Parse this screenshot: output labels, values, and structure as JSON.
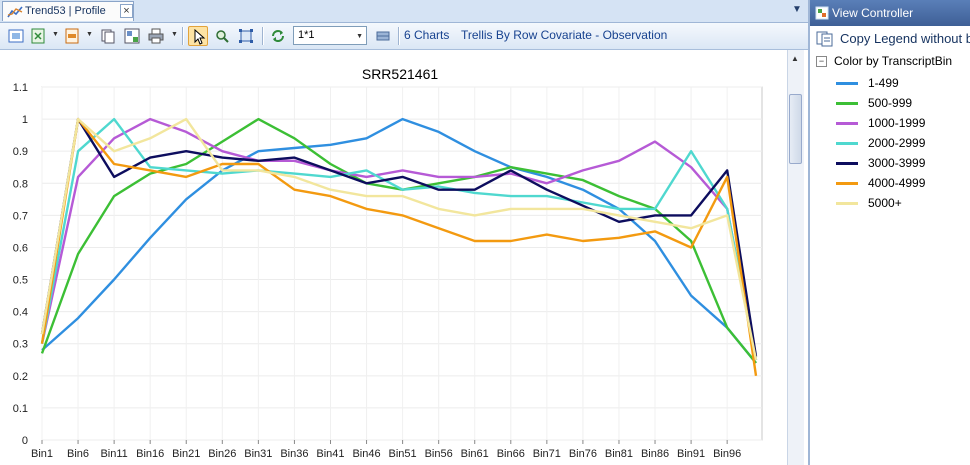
{
  "tab": {
    "title": "Trend53 | Profile",
    "close": "×",
    "menu": "▼"
  },
  "toolbar": {
    "layout_value": "1*1",
    "charts_count": "6 Charts",
    "trellis_label": "Trellis By Row Covariate - Observation"
  },
  "view_controller": {
    "title": "View Controller",
    "copy_legend": "Copy Legend  without bo",
    "legend_title": "Color by TranscriptBin",
    "collapse_glyph": "−"
  },
  "legend": [
    {
      "label": "1-499",
      "color": "#2f8fe0"
    },
    {
      "label": "500-999",
      "color": "#3cbf35"
    },
    {
      "label": "1000-1999",
      "color": "#b65ad6"
    },
    {
      "label": "2000-2999",
      "color": "#4fd8cf"
    },
    {
      "label": "3000-3999",
      "color": "#0d0d5e"
    },
    {
      "label": "4000-4999",
      "color": "#f39a10"
    },
    {
      "label": "5000+",
      "color": "#f2e69d"
    }
  ],
  "chart_data": {
    "type": "line",
    "title": "SRR521461",
    "xlabel": "",
    "ylabel": "",
    "ylim": [
      0,
      1.1
    ],
    "yticks": [
      "0",
      "0.1",
      "0.2",
      "0.3",
      "0.4",
      "0.5",
      "0.6",
      "0.7",
      "0.8",
      "0.9",
      "1",
      "1.1"
    ],
    "xtick_labels": [
      "Bin1",
      "Bin6",
      "Bin11",
      "Bin16",
      "Bin21",
      "Bin26",
      "Bin31",
      "Bin36",
      "Bin41",
      "Bin46",
      "Bin51",
      "Bin56",
      "Bin61",
      "Bin66",
      "Bin71",
      "Bin76",
      "Bin81",
      "Bin86",
      "Bin91",
      "Bin96"
    ],
    "x_bins": [
      1,
      6,
      11,
      16,
      21,
      26,
      31,
      36,
      41,
      46,
      51,
      56,
      61,
      66,
      71,
      76,
      81,
      86,
      91,
      96,
      100
    ],
    "grid": true,
    "legend_placement": "right panel",
    "series": [
      {
        "name": "1-499",
        "values": [
          0.28,
          0.38,
          0.5,
          0.63,
          0.75,
          0.84,
          0.9,
          0.91,
          0.92,
          0.94,
          1.0,
          0.96,
          0.9,
          0.85,
          0.82,
          0.78,
          0.72,
          0.62,
          0.45,
          0.35,
          0.24
        ]
      },
      {
        "name": "500-999",
        "values": [
          0.27,
          0.58,
          0.76,
          0.83,
          0.86,
          0.93,
          1.0,
          0.94,
          0.86,
          0.8,
          0.78,
          0.8,
          0.82,
          0.85,
          0.83,
          0.81,
          0.76,
          0.72,
          0.62,
          0.35,
          0.24
        ]
      },
      {
        "name": "1000-1999",
        "values": [
          0.3,
          0.82,
          0.94,
          1.0,
          0.96,
          0.9,
          0.87,
          0.87,
          0.84,
          0.82,
          0.84,
          0.82,
          0.82,
          0.83,
          0.8,
          0.84,
          0.87,
          0.93,
          0.85,
          0.72,
          0.25
        ]
      },
      {
        "name": "2000-2999",
        "values": [
          0.3,
          0.9,
          1.0,
          0.85,
          0.84,
          0.83,
          0.84,
          0.83,
          0.82,
          0.84,
          0.78,
          0.79,
          0.77,
          0.76,
          0.76,
          0.74,
          0.72,
          0.72,
          0.9,
          0.72,
          0.25
        ]
      },
      {
        "name": "3000-3999",
        "values": [
          0.33,
          1.0,
          0.82,
          0.88,
          0.9,
          0.88,
          0.87,
          0.88,
          0.84,
          0.8,
          0.82,
          0.78,
          0.78,
          0.84,
          0.78,
          0.73,
          0.68,
          0.7,
          0.7,
          0.84,
          0.26
        ]
      },
      {
        "name": "4000-4999",
        "values": [
          0.3,
          1.0,
          0.86,
          0.84,
          0.82,
          0.86,
          0.86,
          0.78,
          0.76,
          0.72,
          0.7,
          0.66,
          0.62,
          0.62,
          0.64,
          0.62,
          0.63,
          0.65,
          0.6,
          0.82,
          0.2
        ]
      },
      {
        "name": "5000+",
        "values": [
          0.33,
          1.0,
          0.9,
          0.94,
          1.0,
          0.84,
          0.84,
          0.82,
          0.78,
          0.76,
          0.76,
          0.72,
          0.7,
          0.72,
          0.72,
          0.72,
          0.7,
          0.68,
          0.66,
          0.7,
          0.25
        ]
      }
    ]
  }
}
